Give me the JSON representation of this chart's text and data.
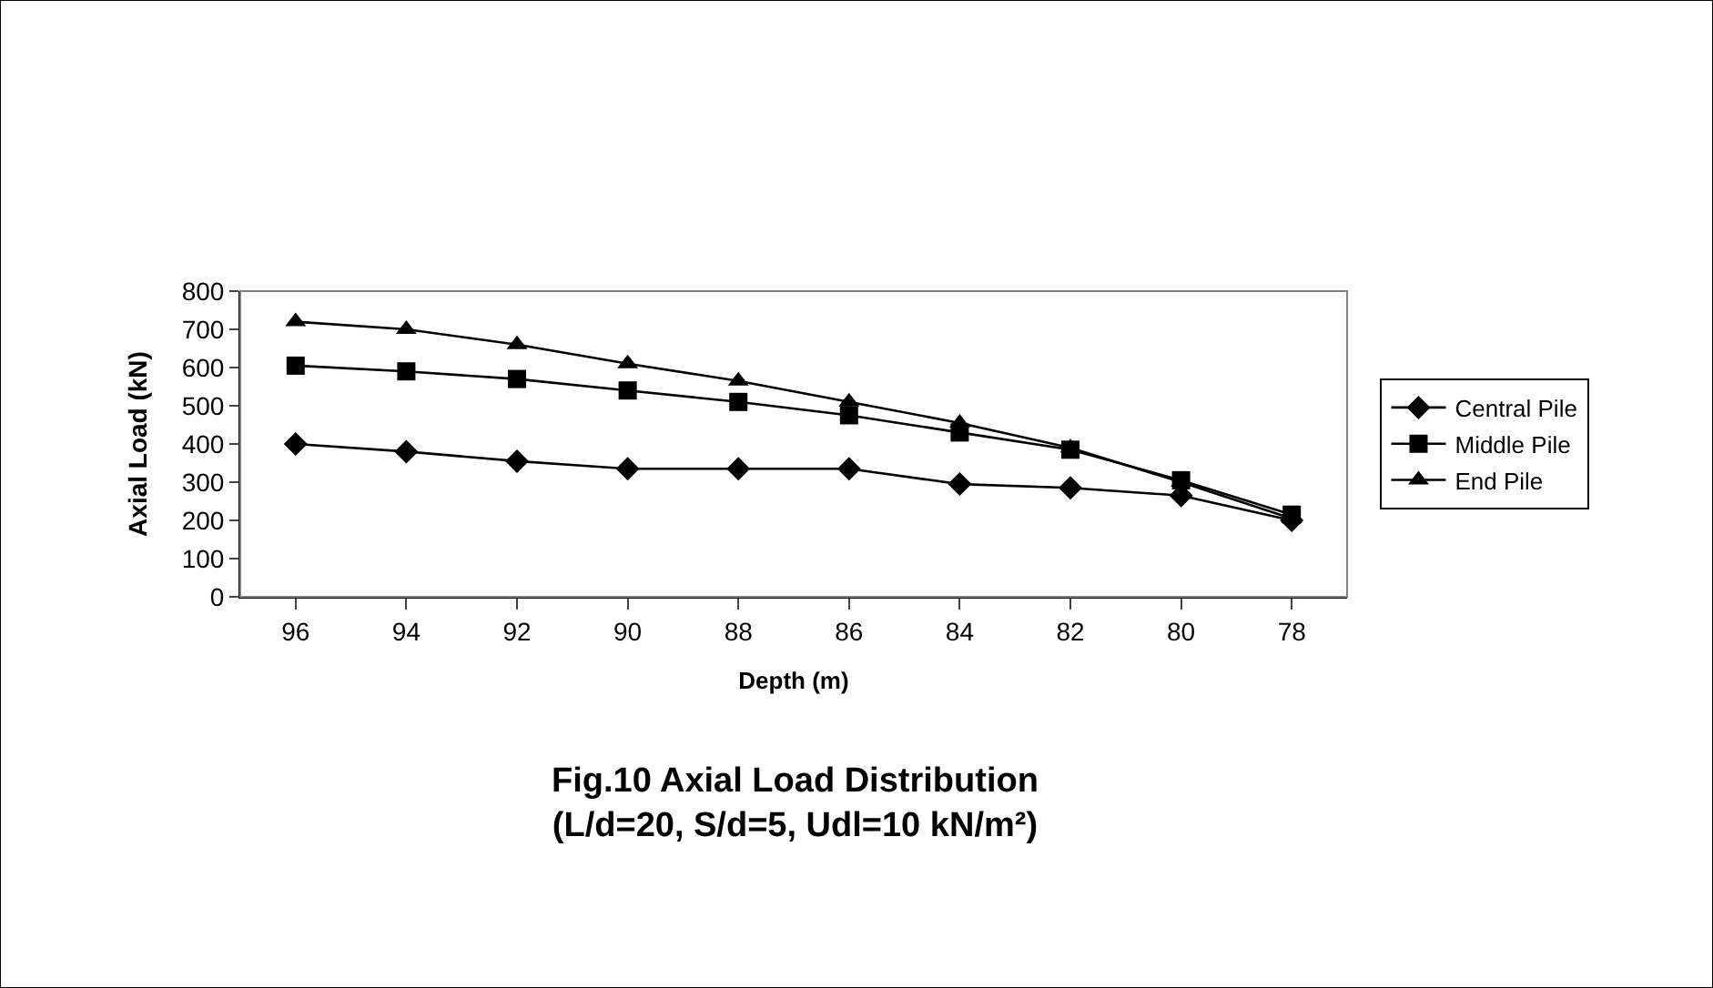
{
  "chart_data": {
    "type": "line",
    "title": "Fig.10 Axial Load Distribution\n(L/d=20, S/d=5, Udl=10 kN/m²)",
    "xlabel": "Depth (m)",
    "ylabel": "Axial Load (kN)",
    "categories": [
      "96",
      "94",
      "92",
      "90",
      "88",
      "86",
      "84",
      "82",
      "80",
      "78"
    ],
    "series": [
      {
        "name": "Central Pile",
        "color": "#000000",
        "marker": "diamond",
        "values": [
          400,
          380,
          355,
          335,
          335,
          335,
          295,
          285,
          265,
          200
        ]
      },
      {
        "name": "Middle Pile",
        "color": "#000000",
        "marker": "square",
        "values": [
          605,
          590,
          570,
          540,
          510,
          475,
          430,
          385,
          305,
          215
        ]
      },
      {
        "name": "End Pile",
        "color": "#000000",
        "marker": "triangle",
        "values": [
          720,
          700,
          660,
          610,
          565,
          510,
          455,
          390,
          300,
          205
        ]
      }
    ],
    "ylim": [
      0,
      800
    ],
    "yticks": [
      0,
      100,
      200,
      300,
      400,
      500,
      600,
      700,
      800
    ],
    "legend": "right",
    "line_style": "solid"
  }
}
